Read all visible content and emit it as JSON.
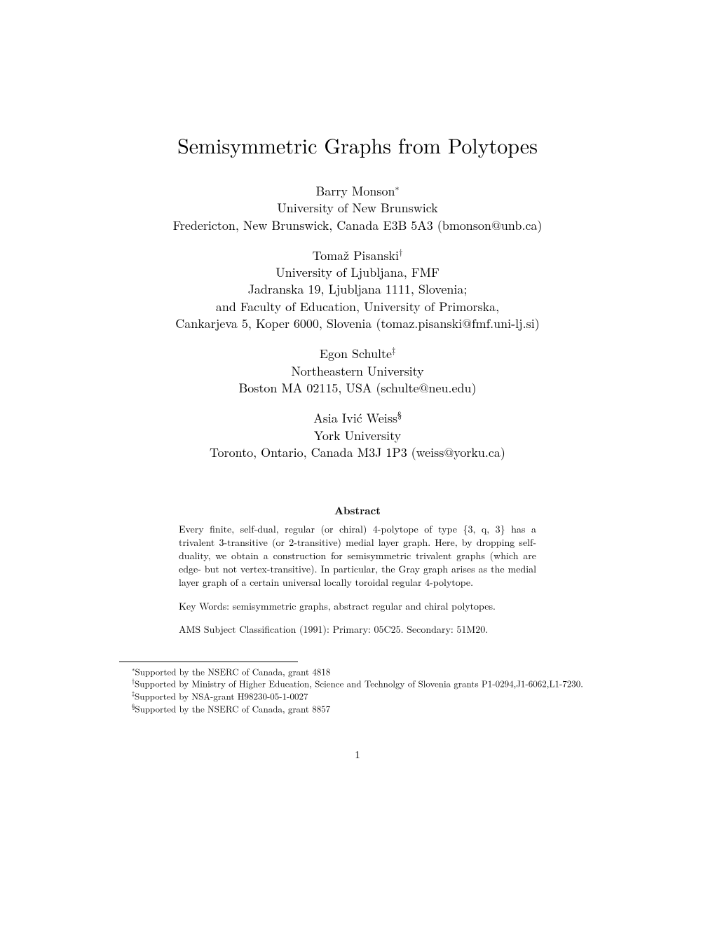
{
  "title": "Semisymmetric Graphs from Polytopes",
  "authors": [
    {
      "name": "Barry Monson",
      "mark": "∗",
      "affiliation": "University of New Brunswick",
      "address": "Fredericton, New Brunswick, Canada E3B 5A3 (bmonson@unb.ca)"
    },
    {
      "name": "Tomaž Pisanski",
      "mark": "†",
      "affiliation": "University of Ljubljana, FMF",
      "address_line1": "Jadranska 19, Ljubljana 1111, Slovenia;",
      "address_line2": "and Faculty of Education, University of Primorska,",
      "address_line3": "Cankarjeva 5, Koper 6000, Slovenia (tomaz.pisanski@fmf.uni-lj.si)"
    },
    {
      "name": "Egon Schulte",
      "mark": "‡",
      "affiliation": "Northeastern University",
      "address": "Boston MA 02115, USA (schulte@neu.edu)"
    },
    {
      "name": "Asia Ivić Weiss",
      "mark": "§",
      "affiliation": "York University",
      "address": "Toronto, Ontario, Canada M3J 1P3 (weiss@yorku.ca)"
    }
  ],
  "abstract": {
    "heading": "Abstract",
    "text": "Every finite, self-dual, regular (or chiral) 4-polytope of type {3, q, 3} has a trivalent 3-transitive (or 2-transitive) medial layer graph. Here, by dropping self-duality, we obtain a construction for semisymmetric trivalent graphs (which are edge- but not vertex-transitive). In particular, the Gray graph arises as the medial layer graph of a certain universal locally toroidal regular 4-polytope."
  },
  "keywords": "Key Words: semisymmetric graphs, abstract regular and chiral polytopes.",
  "ams": "AMS Subject Classification (1991): Primary: 05C25. Secondary: 51M20.",
  "footnotes": [
    {
      "mark": "∗",
      "text": "Supported by the NSERC of Canada, grant 4818"
    },
    {
      "mark": "†",
      "text": "Supported by Ministry of Higher Education, Science and Technolgy of Slovenia grants P1-0294,J1-6062,L1-7230."
    },
    {
      "mark": "‡",
      "text": "Supported by NSA-grant H98230-05-1-0027"
    },
    {
      "mark": "§",
      "text": "Supported by the NSERC of Canada, grant 8857"
    }
  ],
  "page_number": "1",
  "colors": {
    "text": "#000000",
    "background": "#ffffff"
  },
  "typography": {
    "title_fontsize": 30,
    "author_fontsize": 18,
    "abstract_heading_fontsize": 15,
    "abstract_text_fontsize": 14,
    "footnote_fontsize": 13,
    "pagenum_fontsize": 15
  }
}
